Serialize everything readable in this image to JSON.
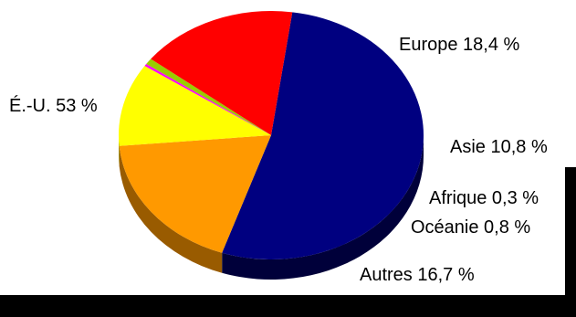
{
  "chart_data": {
    "type": "pie",
    "style": "3d",
    "slices": [
      {
        "label": "É.-U. 53 %",
        "value": 53,
        "color": "#000080",
        "side_color": "#00003a"
      },
      {
        "label": "Europe 18,4 %",
        "value": 18.4,
        "color": "#ff9900",
        "side_color": "#995b00"
      },
      {
        "label": "Asie 10,8 %",
        "value": 10.8,
        "color": "#ffff00",
        "side_color": "#9a9a00"
      },
      {
        "label": "Afrique 0,3 %",
        "value": 0.3,
        "color": "#ff00ff",
        "side_color": "#990099"
      },
      {
        "label": "Océanie 0,8 %",
        "value": 0.8,
        "color": "#99cc00",
        "side_color": "#5b7a00"
      },
      {
        "label": "Autres 16,7 %",
        "value": 16.7,
        "color": "#ff0000",
        "side_color": "#990000"
      }
    ]
  }
}
